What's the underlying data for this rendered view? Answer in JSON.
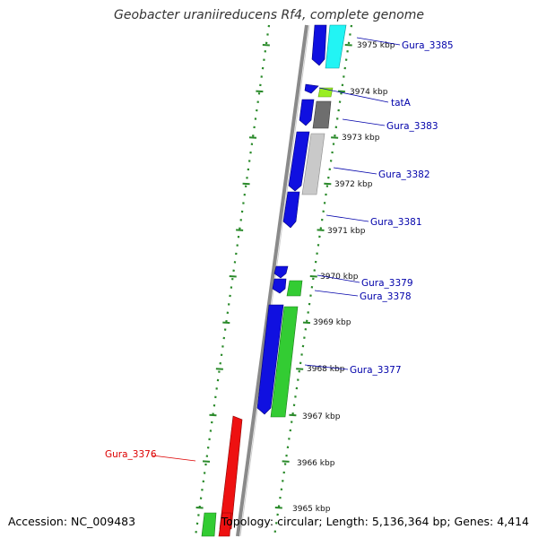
{
  "title": "Geobacter uraniireducens Rf4, complete genome",
  "footer": {
    "accession": "Accession: NC_009483",
    "summary": "Topology: circular; Length: 5,136,364 bp; Genes: 4,414"
  },
  "colors": {
    "forward_cds": "#1010e0",
    "reverse_cds_gray": "#6e6e6e",
    "reverse_cds_light": "#c9c9c9",
    "highlight_green": "#33cc33",
    "highlight_lime": "#99ee22",
    "highlight_cyan": "#22f4f4",
    "highlight_red": "#ee1111",
    "tick_green": "#2a8a2a",
    "label_blue": "#0000aa",
    "label_red": "#dd0000",
    "backbone": "#8a8a8a"
  },
  "ticks": [
    "3975 kbp",
    "3974 kbp",
    "3973 kbp",
    "3972 kbp",
    "3971 kbp",
    "3970 kbp",
    "3969 kbp",
    "3968 kbp",
    "3967 kbp",
    "3966 kbp",
    "3965 kbp"
  ],
  "genes": [
    {
      "name": "Gura_3385",
      "color": "blue"
    },
    {
      "name": "tatA",
      "color": "blue"
    },
    {
      "name": "Gura_3383",
      "color": "blue"
    },
    {
      "name": "Gura_3382",
      "color": "blue"
    },
    {
      "name": "Gura_3381",
      "color": "blue"
    },
    {
      "name": "Gura_3379",
      "color": "blue"
    },
    {
      "name": "Gura_3378",
      "color": "blue"
    },
    {
      "name": "Gura_3377",
      "color": "blue"
    },
    {
      "name": "Gura_3376",
      "color": "red"
    }
  ]
}
